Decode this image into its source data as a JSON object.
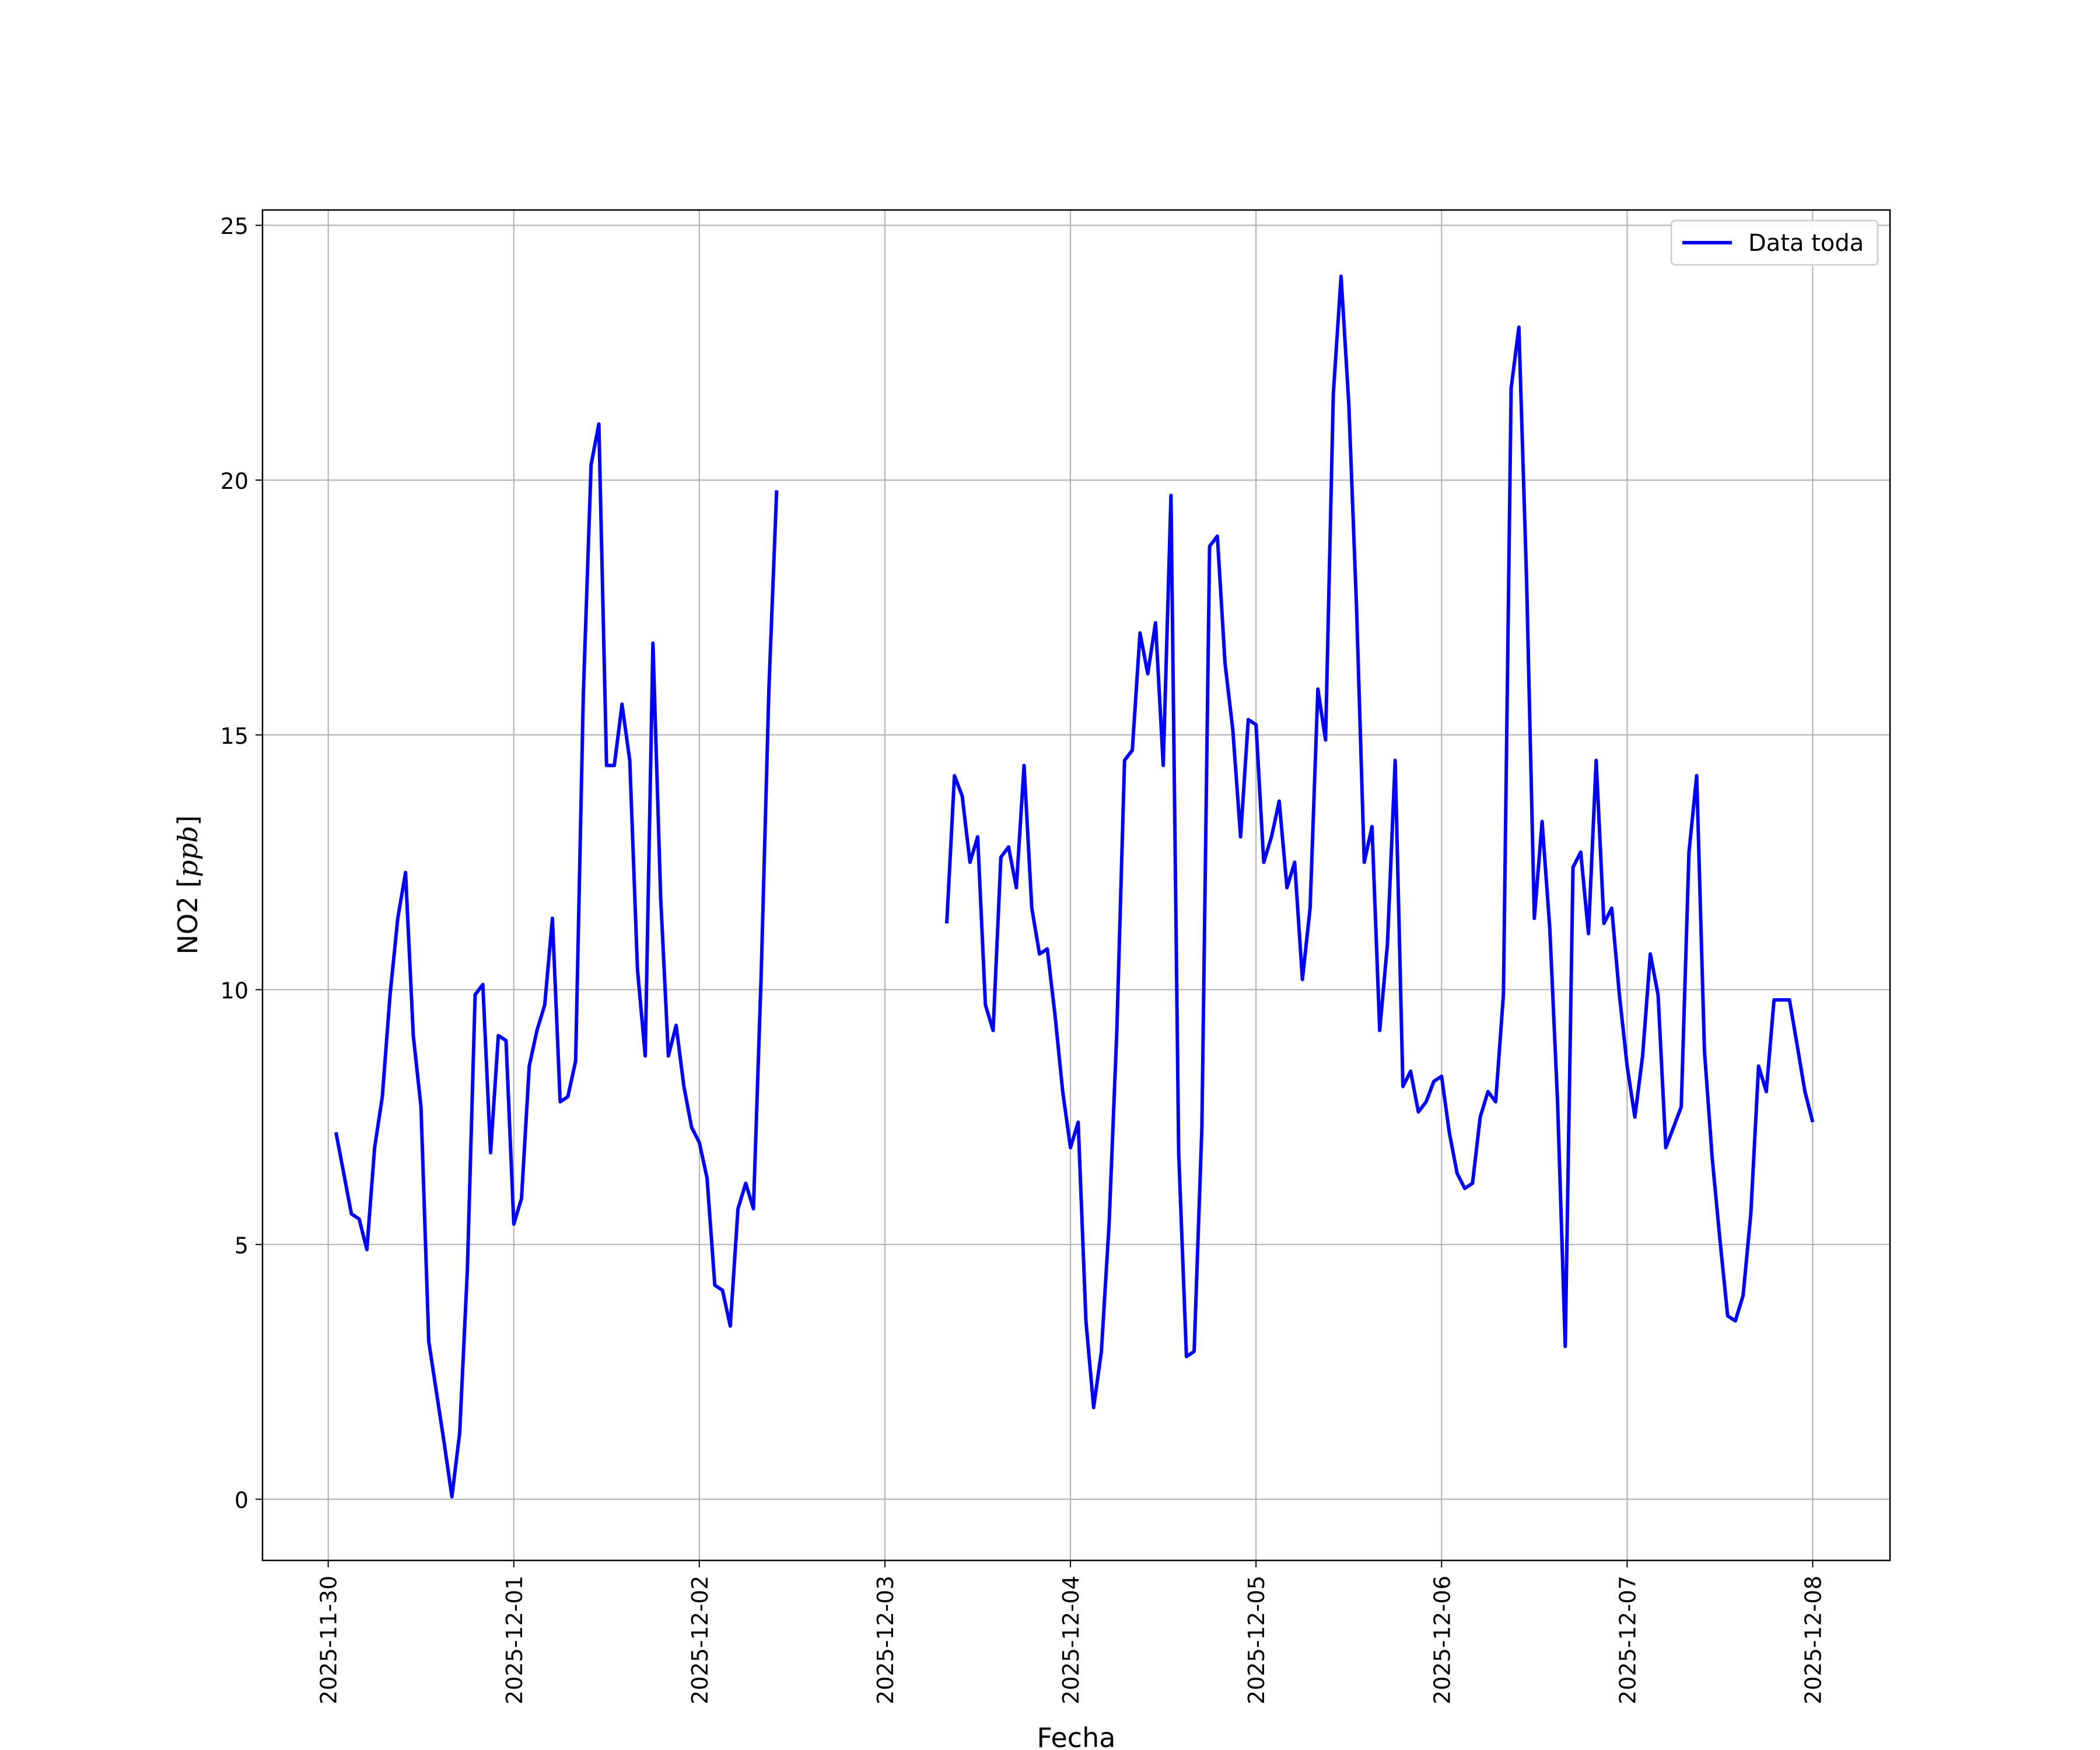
{
  "chart_data": {
    "type": "line",
    "title": "",
    "xlabel": "Fecha",
    "ylabel_main": "NO2 [",
    "ylabel_unit": "ppb",
    "ylabel_end": "]",
    "x_start": "2025-11-30",
    "x_end": "2025-12-08",
    "x_ticks": [
      "2025-11-30",
      "2025-12-01",
      "2025-12-02",
      "2025-12-03",
      "2025-12-04",
      "2025-12-05",
      "2025-12-06",
      "2025-12-07",
      "2025-12-08"
    ],
    "y_ticks": [
      0,
      5,
      10,
      15,
      20,
      25
    ],
    "xlim": [
      "2025-11-29T15:30",
      "2025-12-08T10:00"
    ],
    "ylim": [
      -1.2,
      25.3
    ],
    "grid": true,
    "legend_position": "top-right",
    "line_color": "#0000ff",
    "series": [
      {
        "name": "Data toda",
        "x": [
          "2025-11-30T01:00",
          "2025-11-30T02:00",
          "2025-11-30T03:00",
          "2025-11-30T04:00",
          "2025-11-30T05:00",
          "2025-11-30T06:00",
          "2025-11-30T07:00",
          "2025-11-30T08:00",
          "2025-11-30T09:00",
          "2025-11-30T10:00",
          "2025-11-30T11:00",
          "2025-11-30T12:00",
          "2025-11-30T13:00",
          "2025-11-30T14:00",
          "2025-11-30T15:00",
          "2025-11-30T16:00",
          "2025-11-30T17:00",
          "2025-11-30T18:00",
          "2025-11-30T19:00",
          "2025-11-30T20:00",
          "2025-11-30T21:00",
          "2025-11-30T22:00",
          "2025-11-30T23:00",
          "2025-12-01T00:00",
          "2025-12-01T01:00",
          "2025-12-01T02:00",
          "2025-12-01T03:00",
          "2025-12-01T04:00",
          "2025-12-01T05:00",
          "2025-12-01T06:00",
          "2025-12-01T07:00",
          "2025-12-01T08:00",
          "2025-12-01T09:00",
          "2025-12-01T10:00",
          "2025-12-01T11:00",
          "2025-12-01T12:00",
          "2025-12-01T13:00",
          "2025-12-01T14:00",
          "2025-12-01T15:00",
          "2025-12-01T16:00",
          "2025-12-01T17:00",
          "2025-12-01T18:00",
          "2025-12-01T19:00",
          "2025-12-01T20:00",
          "2025-12-01T21:00",
          "2025-12-01T22:00",
          "2025-12-01T23:00",
          "2025-12-02T00:00",
          "2025-12-02T01:00",
          "2025-12-02T02:00",
          "2025-12-02T03:00",
          "2025-12-02T04:00",
          "2025-12-02T05:00",
          "2025-12-02T06:00",
          "2025-12-02T07:00",
          "2025-12-02T08:00",
          "2025-12-02T09:00",
          "2025-12-02T10:00",
          null,
          "2025-12-03T08:00",
          "2025-12-03T09:00",
          "2025-12-03T10:00",
          "2025-12-03T11:00",
          "2025-12-03T12:00",
          "2025-12-03T13:00",
          "2025-12-03T14:00",
          "2025-12-03T15:00",
          "2025-12-03T16:00",
          "2025-12-03T17:00",
          "2025-12-03T18:00",
          "2025-12-03T19:00",
          "2025-12-03T20:00",
          "2025-12-03T21:00",
          "2025-12-03T22:00",
          "2025-12-03T23:00",
          "2025-12-04T00:00",
          "2025-12-04T01:00",
          "2025-12-04T02:00",
          "2025-12-04T03:00",
          "2025-12-04T04:00",
          "2025-12-04T05:00",
          "2025-12-04T06:00",
          "2025-12-04T07:00",
          "2025-12-04T08:00",
          "2025-12-04T09:00",
          "2025-12-04T10:00",
          "2025-12-04T11:00",
          "2025-12-04T12:00",
          "2025-12-04T13:00",
          "2025-12-04T14:00",
          "2025-12-04T15:00",
          "2025-12-04T16:00",
          "2025-12-04T17:00",
          "2025-12-04T18:00",
          "2025-12-04T19:00",
          "2025-12-04T20:00",
          "2025-12-04T21:00",
          "2025-12-04T22:00",
          "2025-12-04T23:00",
          "2025-12-05T00:00",
          "2025-12-05T01:00",
          "2025-12-05T02:00",
          "2025-12-05T03:00",
          "2025-12-05T04:00",
          "2025-12-05T05:00",
          "2025-12-05T06:00",
          "2025-12-05T07:00",
          "2025-12-05T08:00",
          "2025-12-05T09:00",
          "2025-12-05T10:00",
          "2025-12-05T11:00",
          "2025-12-05T12:00",
          "2025-12-05T13:00",
          "2025-12-05T14:00",
          "2025-12-05T15:00",
          "2025-12-05T16:00",
          "2025-12-05T17:00",
          "2025-12-05T18:00",
          "2025-12-05T19:00",
          "2025-12-05T20:00",
          "2025-12-05T21:00",
          "2025-12-05T22:00",
          "2025-12-05T23:00",
          "2025-12-06T00:00",
          "2025-12-06T01:00",
          "2025-12-06T02:00",
          "2025-12-06T03:00",
          "2025-12-06T04:00",
          "2025-12-06T05:00",
          "2025-12-06T06:00",
          "2025-12-06T07:00",
          "2025-12-06T08:00",
          "2025-12-06T09:00",
          "2025-12-06T10:00",
          "2025-12-06T11:00",
          "2025-12-06T12:00",
          "2025-12-06T13:00",
          "2025-12-06T14:00",
          "2025-12-06T15:00",
          "2025-12-06T16:00",
          "2025-12-06T17:00",
          "2025-12-06T18:00",
          "2025-12-06T19:00",
          "2025-12-06T20:00",
          "2025-12-06T21:00",
          "2025-12-06T22:00",
          "2025-12-06T23:00",
          "2025-12-07T00:00",
          "2025-12-07T01:00",
          "2025-12-07T02:00",
          "2025-12-07T03:00",
          "2025-12-07T04:00",
          "2025-12-07T05:00",
          "2025-12-07T06:00",
          "2025-12-07T07:00",
          "2025-12-07T08:00",
          "2025-12-07T09:00",
          "2025-12-07T10:00",
          "2025-12-07T11:00",
          "2025-12-07T12:00",
          "2025-12-07T13:00",
          "2025-12-07T14:00",
          "2025-12-07T15:00",
          "2025-12-07T16:00",
          "2025-12-07T17:00",
          "2025-12-07T18:00",
          "2025-12-07T19:00",
          "2025-12-07T20:00",
          "2025-12-07T21:00",
          "2025-12-07T22:00",
          "2025-12-07T23:00",
          "2025-12-08T00:00"
        ],
        "values": [
          7.2,
          6.4,
          5.6,
          5.5,
          4.9,
          6.9,
          7.9,
          9.9,
          11.4,
          12.3,
          9.1,
          7.7,
          3.1,
          2.1,
          1.1,
          0.05,
          1.3,
          4.5,
          9.9,
          10.1,
          6.8,
          9.1,
          9.0,
          5.4,
          5.9,
          8.5,
          9.2,
          9.7,
          11.4,
          7.8,
          7.9,
          8.6,
          15.8,
          20.3,
          21.1,
          14.4,
          14.4,
          15.6,
          14.5,
          10.4,
          8.7,
          16.8,
          11.8,
          8.7,
          9.3,
          8.1,
          7.3,
          7.0,
          6.3,
          4.2,
          4.1,
          3.4,
          5.7,
          6.2,
          5.7,
          10.3,
          15.9,
          19.8,
          null,
          11.3,
          14.2,
          13.8,
          12.5,
          13.0,
          9.7,
          9.2,
          12.6,
          12.8,
          12.0,
          14.4,
          11.6,
          10.7,
          10.8,
          9.5,
          8.0,
          6.9,
          7.4,
          3.5,
          1.8,
          2.9,
          5.4,
          9.2,
          14.5,
          14.7,
          17.0,
          16.2,
          17.2,
          14.4,
          19.7,
          6.8,
          2.8,
          2.9,
          7.3,
          18.7,
          18.9,
          16.4,
          15.1,
          13.0,
          15.3,
          15.2,
          12.5,
          13.0,
          13.7,
          12.0,
          12.5,
          10.2,
          11.6,
          15.9,
          14.9,
          21.7,
          24.0,
          21.5,
          17.5,
          12.5,
          13.2,
          9.2,
          10.9,
          14.5,
          8.1,
          8.4,
          7.6,
          7.8,
          8.2,
          8.3,
          7.2,
          6.4,
          6.1,
          6.2,
          7.5,
          8.0,
          7.8,
          9.9,
          21.8,
          23.0,
          18.0,
          11.4,
          13.3,
          11.2,
          7.8,
          3.0,
          12.4,
          12.7,
          11.1,
          14.5,
          11.3,
          11.6,
          9.9,
          8.5,
          7.5,
          8.7,
          10.7,
          9.9,
          6.9,
          7.3,
          7.7,
          12.7,
          14.2,
          8.8,
          6.7,
          5.1,
          3.6,
          3.5,
          4.0,
          5.6,
          8.5,
          8.0,
          9.8,
          9.8,
          9.8,
          8.9,
          8.0,
          7.4
        ]
      }
    ]
  }
}
